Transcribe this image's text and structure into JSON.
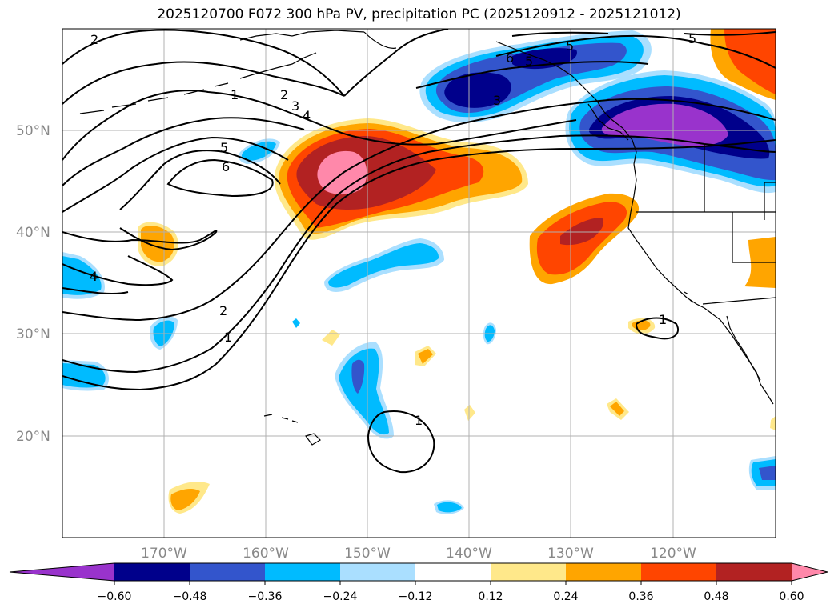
{
  "title": "2025120700 F072 300 hPa PV, precipitation PC (2025120912 - 2025121012)",
  "lat_labels": [
    "50°N",
    "40°N",
    "30°N",
    "20°N"
  ],
  "lon_labels": [
    "170°W",
    "160°W",
    "150°W",
    "140°W",
    "130°W",
    "120°W"
  ],
  "colorbar": {
    "ticks": [
      "−0.60",
      "−0.48",
      "−0.36",
      "−0.24",
      "−0.12",
      "0.12",
      "0.24",
      "0.36",
      "0.48",
      "0.60"
    ],
    "colors": [
      "#9933cc",
      "#00008b",
      "#3355cc",
      "#00bbff",
      "#aadfff",
      "#ffffff",
      "#ffe88a",
      "#ffa500",
      "#ff4500",
      "#b22222",
      "#ff88aa"
    ]
  },
  "contour_labels": [
    "2",
    "1",
    "2",
    "3",
    "4",
    "5",
    "6",
    "5",
    "6",
    "5",
    "3",
    "4",
    "2",
    "1",
    "1",
    "1",
    "5"
  ],
  "colors": {
    "grid": "#b0b0b0",
    "coast": "#000000"
  }
}
